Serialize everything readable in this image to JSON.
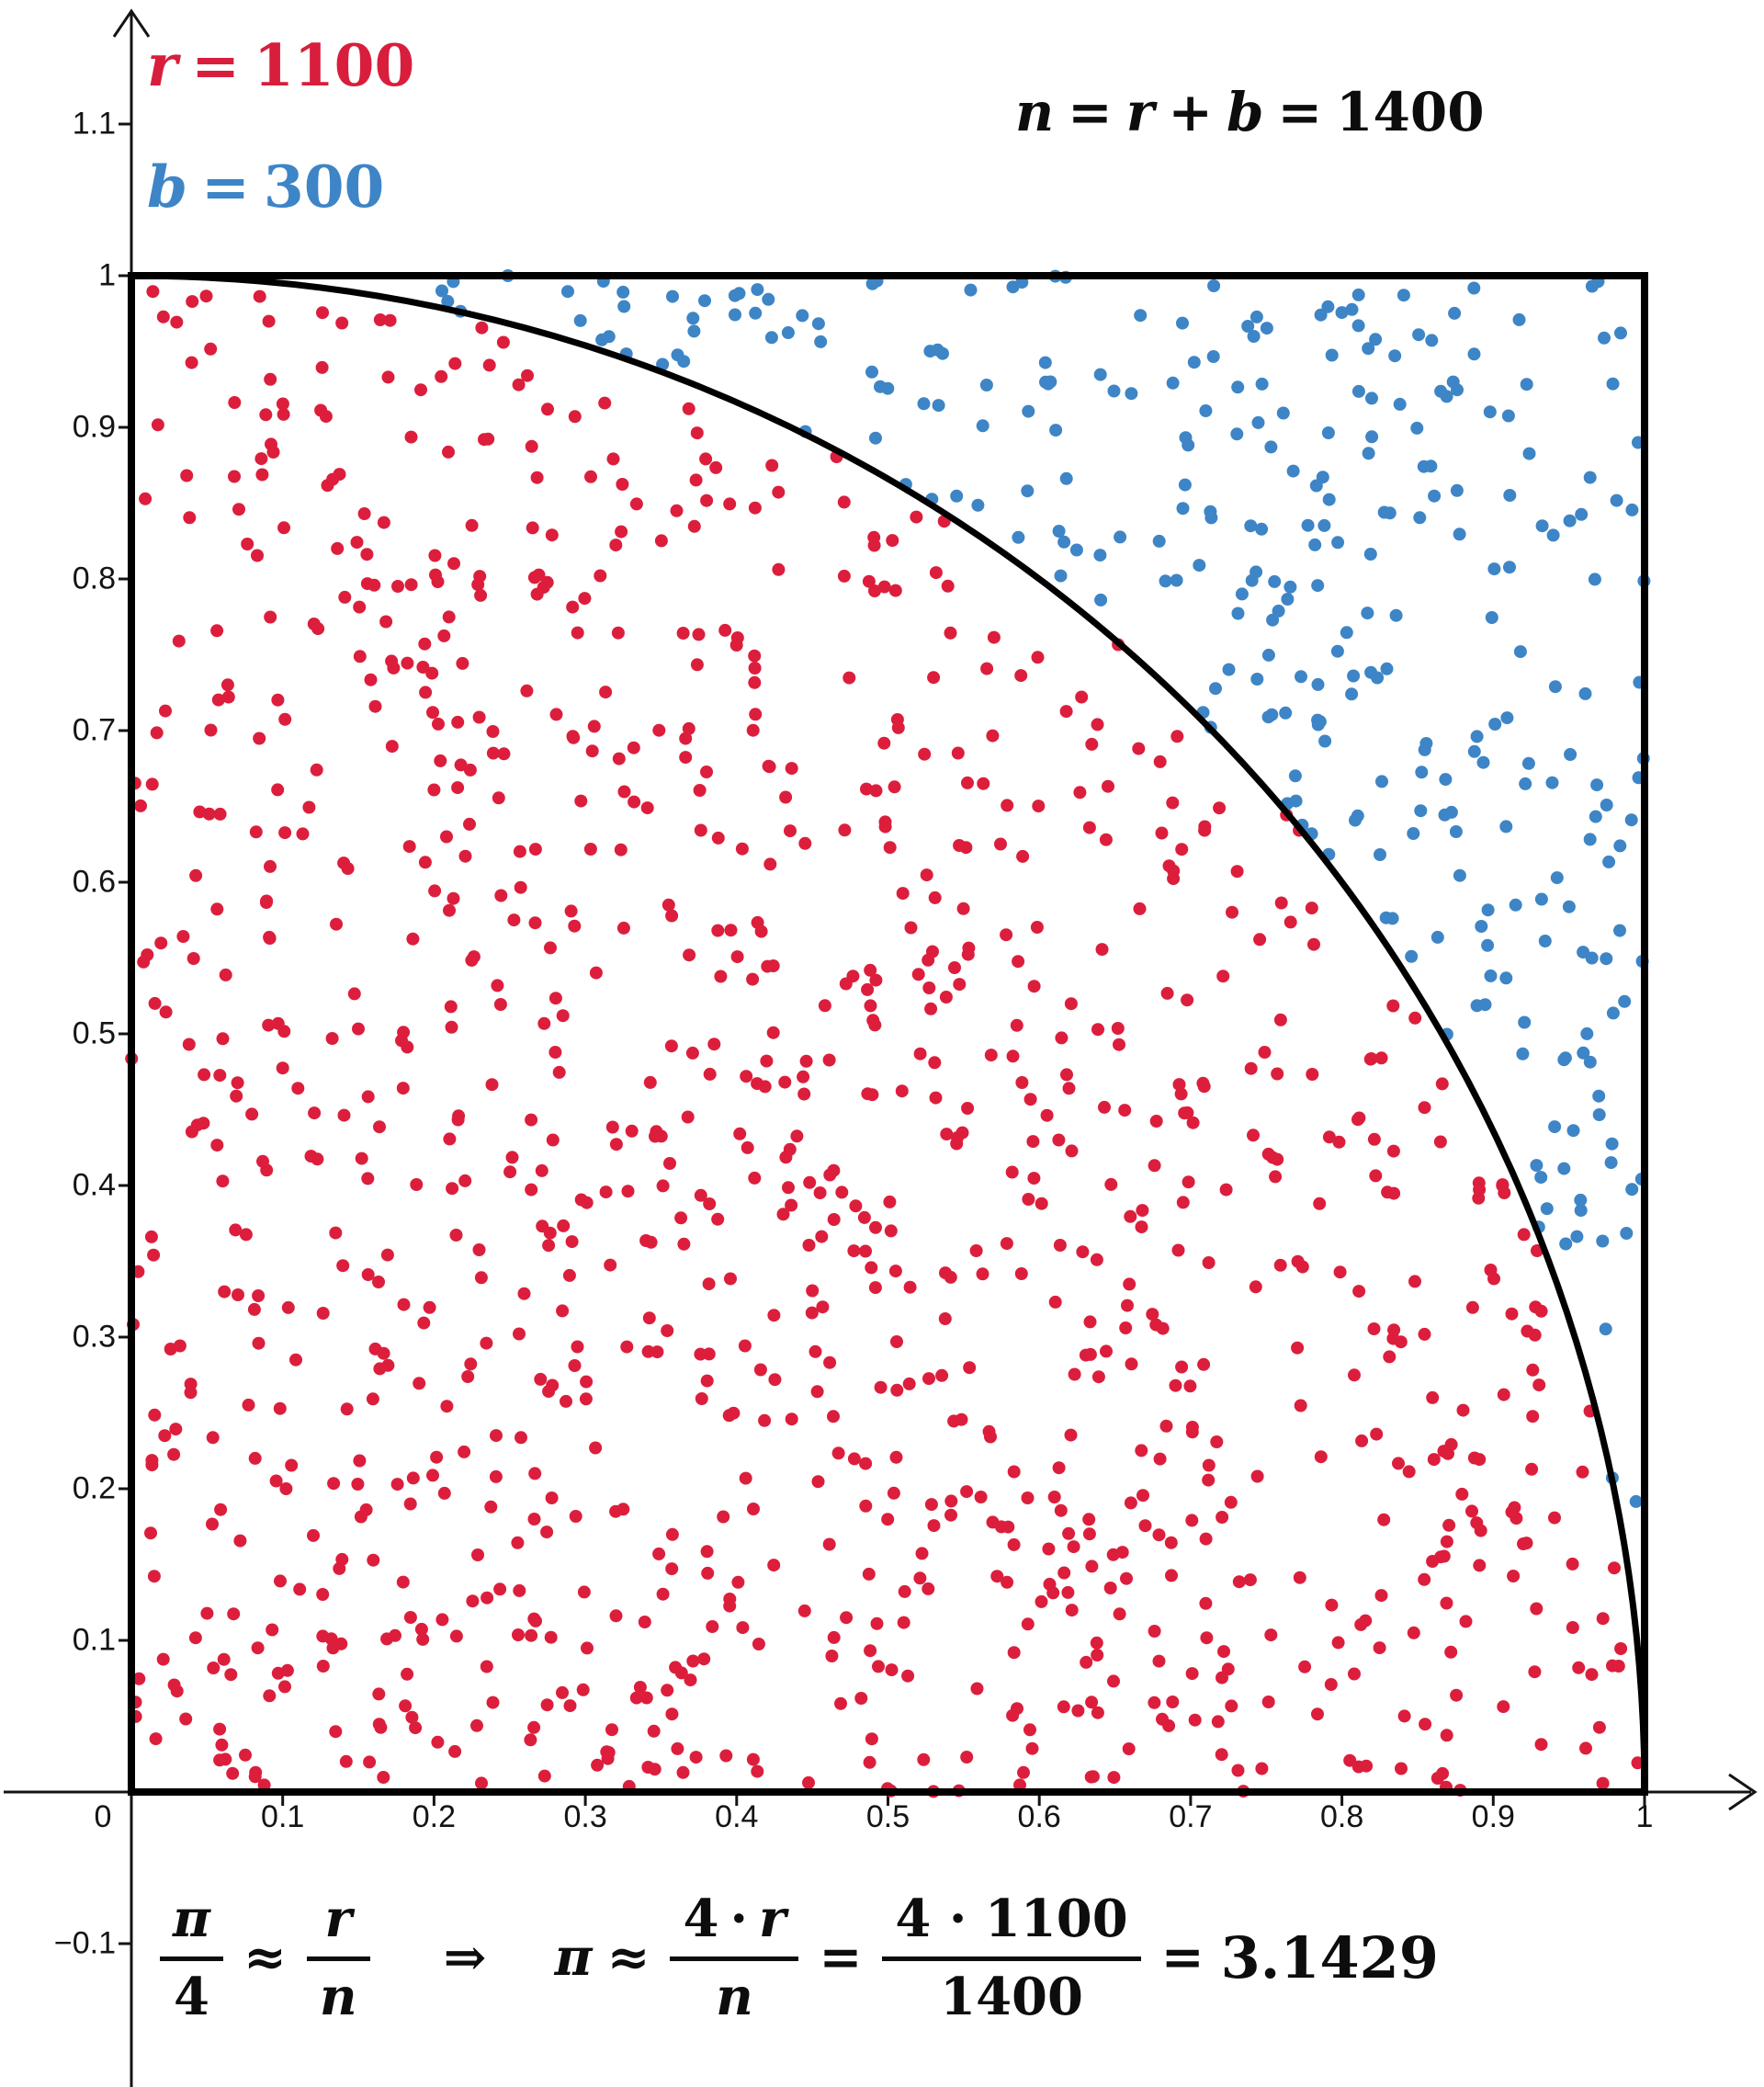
{
  "colors": {
    "red": "#DC1E3C",
    "blue": "#3D85C6",
    "axis_black": "#141414",
    "background": "#FFFFFF"
  },
  "legend": {
    "r_var": "r",
    "eq": "=",
    "r_value": "1100",
    "b_var": "b",
    "b_value": "300"
  },
  "n_equation": {
    "n": "n",
    "eq1": "=",
    "r": "r",
    "plus": "+",
    "b": "b",
    "eq2": "=",
    "value": "1400"
  },
  "formula": {
    "pi_1": "π",
    "four_1": "4",
    "approx_1": "≈",
    "r_1": "r",
    "n_1": "n",
    "implies": "⇒",
    "pi_2": "π",
    "approx_2": "≈",
    "four_2": "4",
    "cdot_1": "·",
    "r_2": "r",
    "n_2": "n",
    "eq_1": "=",
    "num_product": "4 · 1100",
    "den_total": "1400",
    "eq_2": "=",
    "result": "3.1429"
  },
  "chart_data": {
    "type": "scatter",
    "title": "",
    "description": "Monte Carlo estimation of π: n = 1400 uniform random points in the unit square. r = 1100 points with x²+y² ≤ 1 fall inside the quarter circle (red), b = 300 fall outside (blue). π ≈ 4·r/n = 4·1100/1400 = 3.1429.",
    "x_range": [
      0,
      1
    ],
    "y_range": [
      0,
      1
    ],
    "x_ticks": [
      {
        "v": 0.1,
        "label": "0.1"
      },
      {
        "v": 0.2,
        "label": "0.2"
      },
      {
        "v": 0.3,
        "label": "0.3"
      },
      {
        "v": 0.4,
        "label": "0.4"
      },
      {
        "v": 0.5,
        "label": "0.5"
      },
      {
        "v": 0.6,
        "label": "0.6"
      },
      {
        "v": 0.7,
        "label": "0.7"
      },
      {
        "v": 0.8,
        "label": "0.8"
      },
      {
        "v": 0.9,
        "label": "0.9"
      },
      {
        "v": 1,
        "label": "1"
      }
    ],
    "y_ticks": [
      {
        "v": 1.1,
        "label": "1.1"
      },
      {
        "v": 1,
        "label": "1"
      },
      {
        "v": 0.9,
        "label": "0.9"
      },
      {
        "v": 0.8,
        "label": "0.8"
      },
      {
        "v": 0.7,
        "label": "0.7"
      },
      {
        "v": 0.6,
        "label": "0.6"
      },
      {
        "v": 0.5,
        "label": "0.5"
      },
      {
        "v": 0.4,
        "label": "0.4"
      },
      {
        "v": 0.3,
        "label": "0.3"
      },
      {
        "v": 0.2,
        "label": "0.2"
      },
      {
        "v": 0.1,
        "label": "0.1"
      },
      {
        "v": -0.1,
        "label": "−0.1"
      }
    ],
    "origin_label": "0",
    "series": [
      {
        "name": "red points (inside quarter circle)",
        "count": 1100,
        "color": "#DC1E3C",
        "rule": "x^2 + y^2 <= 1"
      },
      {
        "name": "blue points (outside quarter circle)",
        "count": 300,
        "color": "#3D85C6",
        "rule": "x^2 + y^2 > 1"
      }
    ],
    "n_total": 1400,
    "pi_estimate": 3.1429,
    "point_radius": 7,
    "seed": 1337,
    "quarter_circle": {
      "center": [
        0,
        0
      ],
      "radius": 1
    },
    "square": {
      "x0": 0,
      "y0": 0,
      "x1": 1,
      "y1": 1
    },
    "legend_position": "top-left",
    "grid": false
  }
}
